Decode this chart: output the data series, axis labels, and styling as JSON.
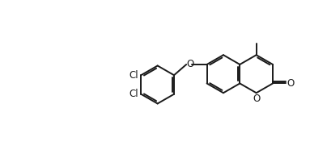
{
  "bg_color": "#ffffff",
  "line_color": "#1a1a1a",
  "line_width": 1.4,
  "font_size": 8.5,
  "figsize": [
    4.04,
    1.91
  ],
  "dpi": 100,
  "xlim": [
    0.0,
    10.5
  ],
  "ylim": [
    0.0,
    5.0
  ]
}
